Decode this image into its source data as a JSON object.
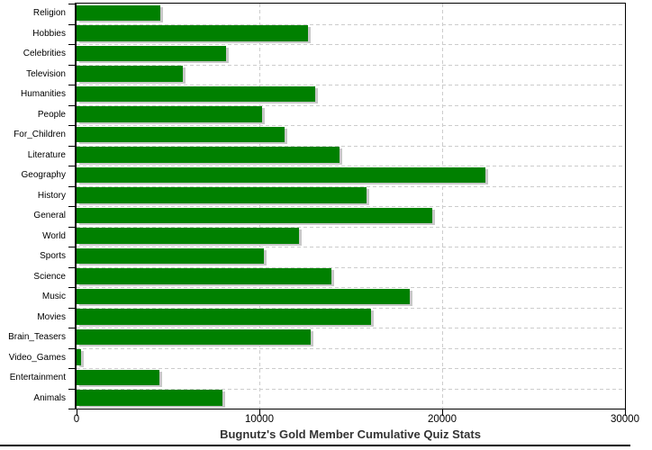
{
  "chart_data": {
    "type": "bar",
    "orientation": "horizontal",
    "title": "Bugnutz's Gold Member Cumulative Quiz Stats",
    "categories": [
      "Religion",
      "Hobbies",
      "Celebrities",
      "Television",
      "Humanities",
      "People",
      "For_Children",
      "Literature",
      "Geography",
      "History",
      "General",
      "World",
      "Sports",
      "Science",
      "Music",
      "Movies",
      "Brain_Teasers",
      "Video_Games",
      "Entertainment",
      "Animals"
    ],
    "values": [
      4600,
      12650,
      8200,
      5800,
      13050,
      10150,
      11400,
      14400,
      22350,
      15850,
      19450,
      12150,
      10250,
      13950,
      18250,
      16100,
      12800,
      250,
      4550,
      8000
    ],
    "xlabel": "",
    "ylabel": "",
    "xlim": [
      0,
      30000
    ],
    "x_ticks": [
      0,
      10000,
      20000,
      30000
    ],
    "x_tick_labels": [
      "0",
      "10000",
      "20000",
      "30000"
    ],
    "grid": true,
    "legend": "none",
    "colors": {
      "bar": "#008000",
      "bar_shadow": "#c8c8c8",
      "gridline": "#cccccc",
      "axis": "#000000",
      "title": "#333333",
      "tick_label": "#000000"
    }
  }
}
